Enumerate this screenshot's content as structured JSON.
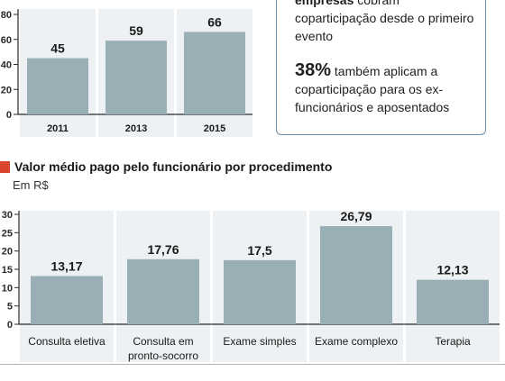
{
  "callout": {
    "part1_bold": "empresas",
    "part1_rest": " cobram coparticipação desde o primeiro evento",
    "pct": "38%",
    "part2_rest": " também aplicam a coparticipação para os ex-funcionários e aposentados"
  },
  "colors": {
    "bar": "#9aaeb5",
    "panel": "#eef1f3",
    "axis": "#2a2a2a",
    "marker": "#d9462d",
    "callout_border": "#6f8fa8"
  },
  "chart_data": [
    {
      "type": "bar",
      "title": "",
      "categories": [
        "2011",
        "2013",
        "2015"
      ],
      "values": [
        45,
        59,
        66
      ],
      "data_labels": [
        "45",
        "59",
        "66"
      ],
      "yticks": [
        0,
        20,
        40,
        60,
        80
      ],
      "ylim": [
        0,
        80
      ],
      "xlabel": "",
      "ylabel": "",
      "grid": false
    },
    {
      "type": "bar",
      "title": "Valor médio pago pelo funcionário por procedimento",
      "subtitle": "Em R$",
      "categories": [
        "Consulta eletiva",
        "Consulta em pronto-socorro",
        "Exame simples",
        "Exame complexo",
        "Terapia"
      ],
      "category_lines": [
        [
          "Consulta eletiva"
        ],
        [
          "Consulta em",
          "pronto-socorro"
        ],
        [
          "Exame simples"
        ],
        [
          "Exame complexo"
        ],
        [
          "Terapia"
        ]
      ],
      "values": [
        13.17,
        17.76,
        17.5,
        26.79,
        12.13
      ],
      "data_labels": [
        "13,17",
        "17,76",
        "17,5",
        "26,79",
        "12,13"
      ],
      "yticks": [
        0,
        5,
        10,
        15,
        20,
        25,
        30
      ],
      "ylim": [
        0,
        30
      ],
      "xlabel": "",
      "ylabel": "",
      "grid": false
    }
  ]
}
